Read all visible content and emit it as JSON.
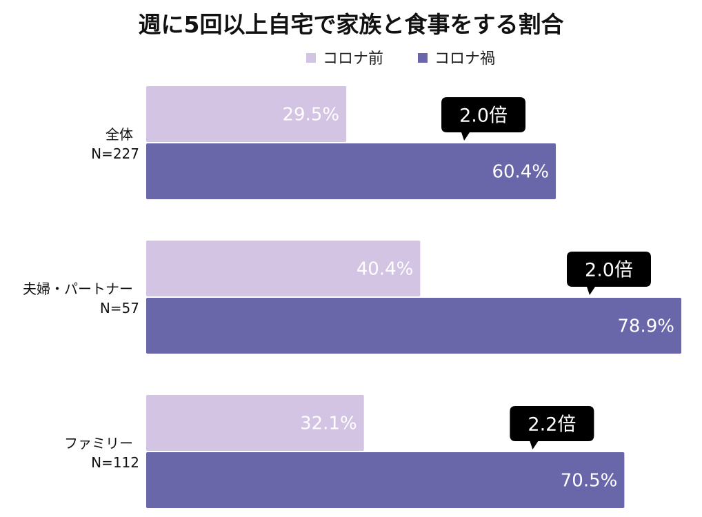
{
  "chart_data": {
    "type": "bar",
    "orientation": "horizontal",
    "title": "週に5回以上自宅で家族と食事をする割合",
    "legend_position": "top",
    "categories": [
      {
        "name": "全体",
        "n": "N=227"
      },
      {
        "name": "夫婦・パートナー",
        "n": "N=57"
      },
      {
        "name": "ファミリー",
        "n": "N=112"
      }
    ],
    "series": [
      {
        "name": "コロナ前",
        "color": "#d3c4e4",
        "values": [
          29.5,
          40.4,
          32.1
        ]
      },
      {
        "name": "コロナ禍",
        "color": "#6966aa",
        "values": [
          60.4,
          78.9,
          70.5
        ]
      }
    ],
    "value_suffix": "%",
    "ratios": [
      "2.0倍",
      "2.0倍",
      "2.2倍"
    ],
    "xlim": [
      0,
      80
    ],
    "grid": false
  }
}
